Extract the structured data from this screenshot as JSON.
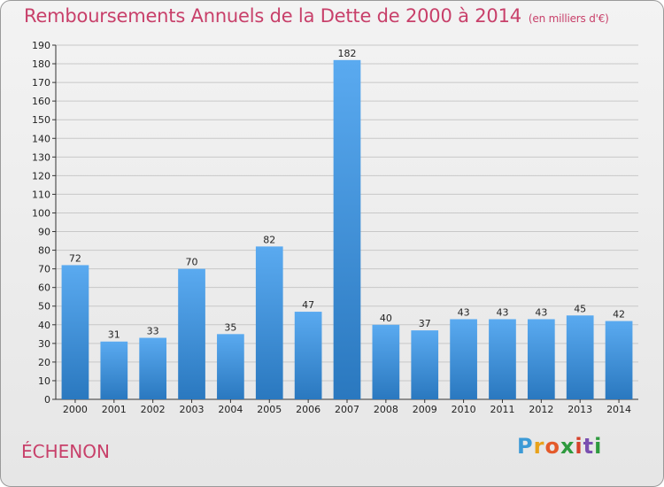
{
  "header": {
    "title": "Remboursements Annuels de la Dette de 2000 à 2014",
    "subtitle": "(en milliers d'€)"
  },
  "footer": {
    "commune": "ÉCHENON",
    "logo": [
      "P",
      "r",
      "o",
      "x",
      "i",
      "t",
      "i"
    ],
    "logo_colors": [
      "#3c9ad6",
      "#e8a21a",
      "#e45a2a",
      "#2e9a3e",
      "#d6402a",
      "#7a4fb0",
      "#2e9a3e"
    ]
  },
  "chart_data": {
    "type": "bar",
    "title": "Remboursements Annuels de la Dette de 2000 à 2014",
    "subtitle": "(en milliers d'€)",
    "categories": [
      "2000",
      "2001",
      "2002",
      "2003",
      "2004",
      "2005",
      "2006",
      "2007",
      "2008",
      "2009",
      "2010",
      "2011",
      "2012",
      "2013",
      "2014"
    ],
    "values": [
      72,
      31,
      33,
      70,
      35,
      82,
      47,
      182,
      40,
      37,
      43,
      43,
      43,
      45,
      42
    ],
    "ylim": [
      0,
      190
    ],
    "yticks": [
      0,
      10,
      20,
      30,
      40,
      50,
      60,
      70,
      80,
      90,
      100,
      110,
      120,
      130,
      140,
      150,
      160,
      170,
      180,
      190
    ],
    "grid": true,
    "bar_color_light": "#5aaaf0",
    "bar_color_dark": "#2a78bf"
  }
}
